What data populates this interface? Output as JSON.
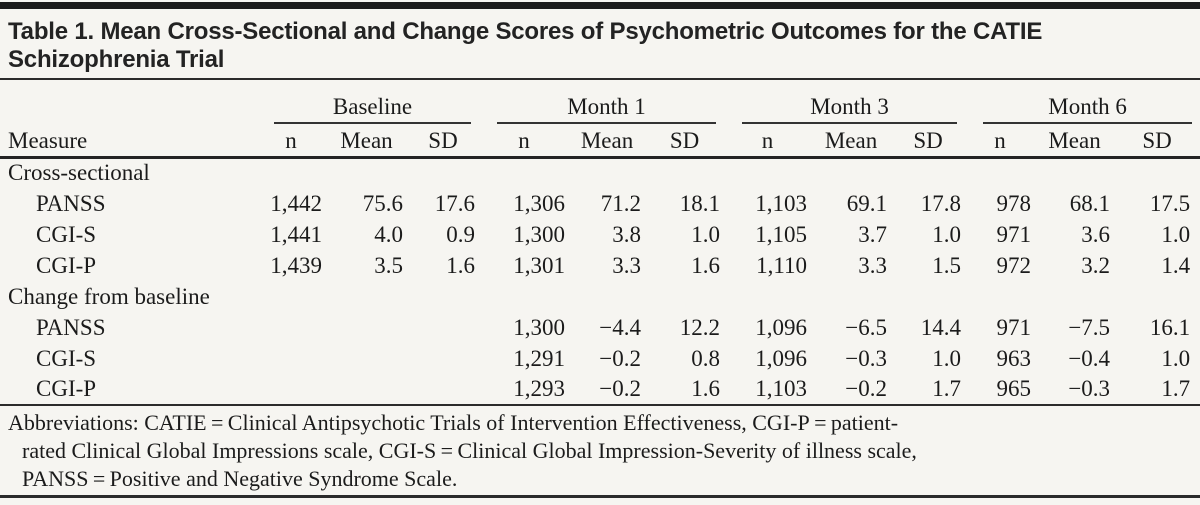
{
  "colors": {
    "background": "#f6f5f1",
    "text": "#1b1b1b",
    "rule": "#2b2b2b"
  },
  "title_lines": [
    "Table 1. Mean Cross-Sectional and Change Scores of Psychometric Outcomes for the CATIE",
    "Schizophrenia Trial"
  ],
  "table": {
    "measure_header": "Measure",
    "groups": [
      {
        "label": "Baseline"
      },
      {
        "label": "Month 1"
      },
      {
        "label": "Month 3"
      },
      {
        "label": "Month 6"
      }
    ],
    "subheaders": [
      "n",
      "Mean",
      "SD"
    ],
    "sections": [
      {
        "label": "Cross-sectional",
        "rows": [
          {
            "measure": "PANSS",
            "values": [
              "1,442",
              "75.6",
              "17.6",
              "1,306",
              "71.2",
              "18.1",
              "1,103",
              "69.1",
              "17.8",
              "978",
              "68.1",
              "17.5"
            ]
          },
          {
            "measure": "CGI-S",
            "values": [
              "1,441",
              "4.0",
              "0.9",
              "1,300",
              "3.8",
              "1.0",
              "1,105",
              "3.7",
              "1.0",
              "971",
              "3.6",
              "1.0"
            ]
          },
          {
            "measure": "CGI-P",
            "values": [
              "1,439",
              "3.5",
              "1.6",
              "1,301",
              "3.3",
              "1.6",
              "1,110",
              "3.3",
              "1.5",
              "972",
              "3.2",
              "1.4"
            ]
          }
        ]
      },
      {
        "label": "Change from baseline",
        "rows": [
          {
            "measure": "PANSS",
            "values": [
              "",
              "",
              "",
              "1,300",
              "−4.4",
              "12.2",
              "1,096",
              "−6.5",
              "14.4",
              "971",
              "−7.5",
              "16.1"
            ]
          },
          {
            "measure": "CGI-S",
            "values": [
              "",
              "",
              "",
              "1,291",
              "−0.2",
              "0.8",
              "1,096",
              "−0.3",
              "1.0",
              "963",
              "−0.4",
              "1.0"
            ]
          },
          {
            "measure": "CGI-P",
            "values": [
              "",
              "",
              "",
              "1,293",
              "−0.2",
              "1.6",
              "1,103",
              "−0.2",
              "1.7",
              "965",
              "−0.3",
              "1.7"
            ]
          }
        ]
      }
    ]
  },
  "footnote_lines": [
    "Abbreviations: CATIE = Clinical Antipsychotic Trials of Intervention Effectiveness, CGI-P = patient-",
    "rated Clinical Global Impressions scale, CGI-S = Clinical Global Impression-Severity of illness scale,",
    "PANSS = Positive and Negative Syndrome Scale."
  ]
}
